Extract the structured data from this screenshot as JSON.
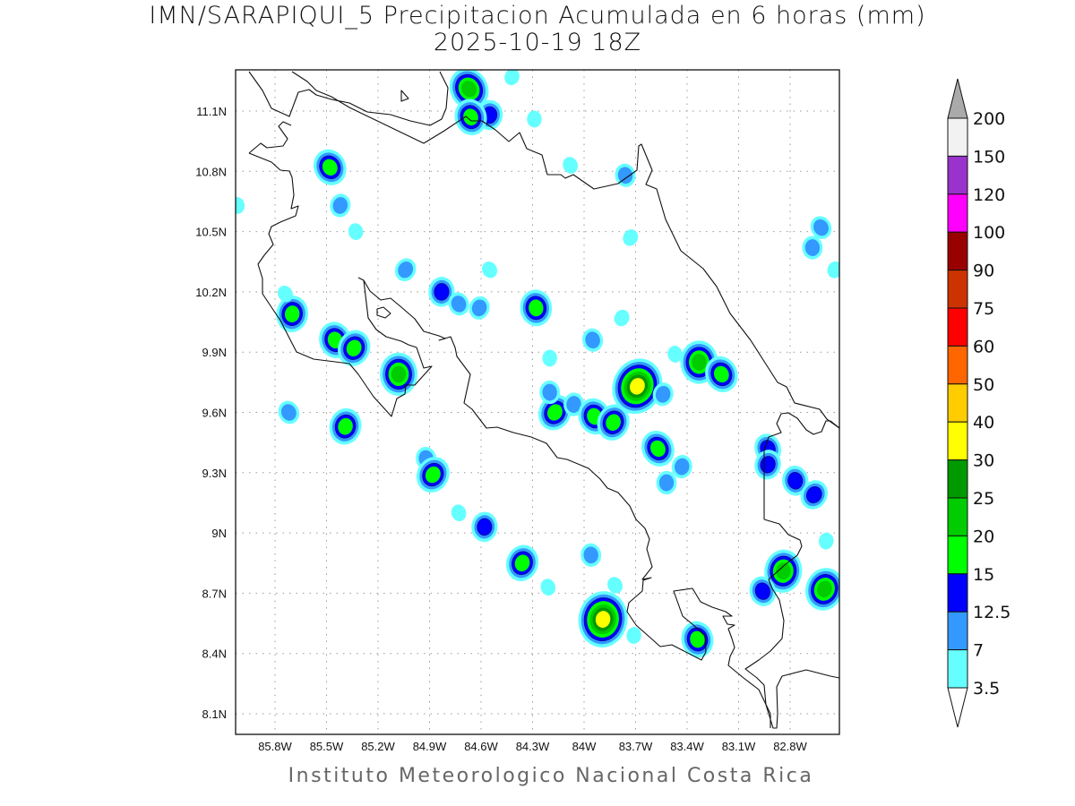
{
  "title": {
    "line1": "IMN/SARAPIQUI_5 Precipitacion Acumulada en 6 horas (mm)",
    "line2": "2025-10-19 18Z"
  },
  "footer": "Instituto Meteorologico Nacional Costa Rica",
  "axes": {
    "lon_ticks": [
      "85.8W",
      "85.5W",
      "85.2W",
      "84.9W",
      "84.6W",
      "84.3W",
      "84W",
      "83.7W",
      "83.4W",
      "83.1W",
      "82.8W"
    ],
    "lat_ticks": [
      "11.1N",
      "10.8N",
      "10.5N",
      "10.2N",
      "9.9N",
      "9.6N",
      "9.3N",
      "9N",
      "8.7N",
      "8.4N",
      "8.1N"
    ]
  },
  "colorbar": {
    "labels": [
      "200",
      "150",
      "120",
      "100",
      "90",
      "75",
      "60",
      "50",
      "40",
      "30",
      "25",
      "20",
      "15",
      "12.5",
      "7",
      "3.5"
    ],
    "thresholds": [
      3.5,
      7,
      12.5,
      15,
      20,
      25,
      30,
      40,
      50,
      60,
      75,
      90,
      100,
      120,
      150
    ],
    "colors": [
      "#66ffff",
      "#3399ff",
      "#0000ff",
      "#00ff00",
      "#00cc00",
      "#009900",
      "#ffff00",
      "#ffcc00",
      "#ff6600",
      "#ff0000",
      "#cc3300",
      "#990000",
      "#ff00ff",
      "#9933cc",
      "#f2f2f2"
    ],
    "over_color": "#aaaaaa",
    "under_color": "#ffffff"
  },
  "chart_data": {
    "type": "contour-map",
    "variable": "6-hour accumulated precipitation (mm)",
    "lon_range_W": [
      86.03,
      82.51
    ],
    "lat_range_N": [
      8.0,
      11.3
    ],
    "grid": true,
    "cells": [
      [
        84.67,
        11.21,
        22
      ],
      [
        84.55,
        11.08,
        14
      ],
      [
        84.66,
        11.07,
        18
      ],
      [
        84.42,
        11.27,
        5
      ],
      [
        84.29,
        11.06,
        5
      ],
      [
        85.48,
        10.82,
        18
      ],
      [
        85.42,
        10.63,
        10
      ],
      [
        85.33,
        10.5,
        5
      ],
      [
        85.04,
        10.31,
        10
      ],
      [
        84.83,
        10.2,
        14
      ],
      [
        84.73,
        10.14,
        10
      ],
      [
        84.61,
        10.12,
        10
      ],
      [
        84.28,
        10.12,
        18
      ],
      [
        84.55,
        10.31,
        5
      ],
      [
        85.7,
        10.09,
        18
      ],
      [
        85.45,
        9.96,
        18
      ],
      [
        85.34,
        9.92,
        18
      ],
      [
        85.08,
        9.79,
        22
      ],
      [
        85.72,
        9.6,
        10
      ],
      [
        85.39,
        9.53,
        18
      ],
      [
        84.92,
        9.37,
        10
      ],
      [
        84.88,
        9.29,
        18
      ],
      [
        84.58,
        9.03,
        14
      ],
      [
        84.73,
        9.1,
        5
      ],
      [
        84.36,
        8.85,
        18
      ],
      [
        83.96,
        8.89,
        10
      ],
      [
        83.82,
        8.74,
        5
      ],
      [
        83.89,
        8.57,
        35
      ],
      [
        83.34,
        8.47,
        18
      ],
      [
        83.69,
        9.73,
        31
      ],
      [
        83.33,
        9.85,
        22
      ],
      [
        83.2,
        9.79,
        18
      ],
      [
        83.54,
        9.69,
        10
      ],
      [
        83.47,
        9.89,
        5
      ],
      [
        84.17,
        9.6,
        18
      ],
      [
        84.06,
        9.64,
        10
      ],
      [
        83.94,
        9.58,
        18
      ],
      [
        83.83,
        9.55,
        18
      ],
      [
        84.2,
        9.7,
        10
      ],
      [
        83.57,
        9.42,
        18
      ],
      [
        83.43,
        9.33,
        10
      ],
      [
        83.95,
        9.96,
        10
      ],
      [
        83.78,
        10.07,
        5
      ],
      [
        83.52,
        9.25,
        10
      ],
      [
        82.93,
        9.42,
        14
      ],
      [
        82.93,
        9.34,
        14
      ],
      [
        82.77,
        9.26,
        14
      ],
      [
        82.66,
        9.19,
        14
      ],
      [
        82.84,
        8.81,
        22
      ],
      [
        82.96,
        8.71,
        14
      ],
      [
        82.6,
        8.72,
        22
      ],
      [
        82.67,
        10.42,
        10
      ],
      [
        82.62,
        10.52,
        10
      ],
      [
        82.59,
        8.96,
        5
      ],
      [
        83.76,
        10.78,
        10
      ],
      [
        83.73,
        10.47,
        5
      ],
      [
        84.2,
        9.87,
        5
      ],
      [
        84.08,
        10.83,
        5
      ],
      [
        82.54,
        10.31,
        5
      ],
      [
        86.02,
        10.63,
        5
      ],
      [
        85.74,
        10.19,
        5
      ],
      [
        83.71,
        8.49,
        5
      ],
      [
        84.21,
        8.73,
        5
      ]
    ]
  }
}
